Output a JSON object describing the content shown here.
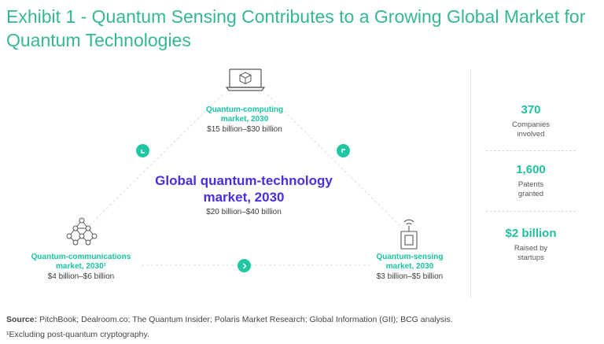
{
  "title": "Exhibit 1 - Quantum Sensing Contributes to a Growing Global Market for Quantum Technologies",
  "computing": {
    "head_line1": "Quantum-computing",
    "head_line2": "market, 2030",
    "value": "$15 billion–$30 billion"
  },
  "center": {
    "line1": "Global quantum-technology",
    "line2": "market, 2030",
    "value": "$20 billion–$40 billion"
  },
  "communications": {
    "head_line1": "Quantum-communications",
    "head_line2": "market, 2030¹",
    "value": "$4 billion–$6 billion"
  },
  "sensing": {
    "head_line1": "Quantum-sensing",
    "head_line2": "market, 2030",
    "value": "$3 billion–$5 billion"
  },
  "stats": [
    {
      "number": "370",
      "label_line1": "Companies",
      "label_line2": "involved"
    },
    {
      "number": "1,600",
      "label_line1": "Patents",
      "label_line2": "granted"
    },
    {
      "number": "$2 billion",
      "label_line1": "Raised by",
      "label_line2": "startups"
    }
  ],
  "source": {
    "label": "Source:",
    "text": " PitchBook; Dealroom.co; The Quantum Insider; Polaris Market Research; Global Information (GII); BCG analysis."
  },
  "footnote": "¹Excluding post-quantum cryptography.",
  "colors": {
    "title": "#35b795",
    "accent": "#21c6a3",
    "center": "#4a2ee0"
  },
  "icons": [
    "laptop-cube-icon",
    "network-nodes-icon",
    "sensor-device-icon",
    "arrow-ne-icon",
    "arrow-nw-icon",
    "arrow-right-icon"
  ]
}
